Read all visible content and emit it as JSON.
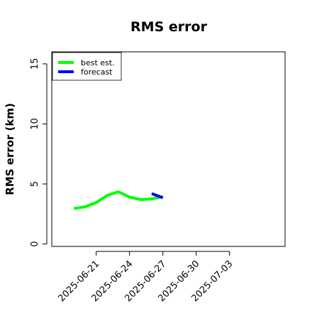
{
  "chart_data": {
    "type": "line",
    "title": "RMS error",
    "xlabel": "",
    "ylabel": "RMS error (km)",
    "x_axis_type": "date",
    "xlim": [
      "2025-06-17",
      "2025-07-08"
    ],
    "ylim": [
      -0.2,
      16.0
    ],
    "x_ticks": [
      "2025-06-21",
      "2025-06-24",
      "2025-06-27",
      "2025-06-30",
      "2025-07-03"
    ],
    "y_ticks": [
      0,
      5,
      10,
      15
    ],
    "grid": false,
    "legend_position": "top-left",
    "series": [
      {
        "name": "best est.",
        "color": "#00ff00",
        "x": [
          "2025-06-19",
          "2025-06-20",
          "2025-06-21",
          "2025-06-22",
          "2025-06-23",
          "2025-06-24",
          "2025-06-25",
          "2025-06-26",
          "2025-06-27"
        ],
        "y": [
          2.95,
          3.1,
          3.45,
          4.05,
          4.35,
          3.9,
          3.7,
          3.75,
          3.95
        ]
      },
      {
        "name": "forecast",
        "color": "#0000ff",
        "x": [
          "2025-06-26",
          "2025-06-27"
        ],
        "y": [
          4.2,
          3.85
        ]
      }
    ]
  }
}
